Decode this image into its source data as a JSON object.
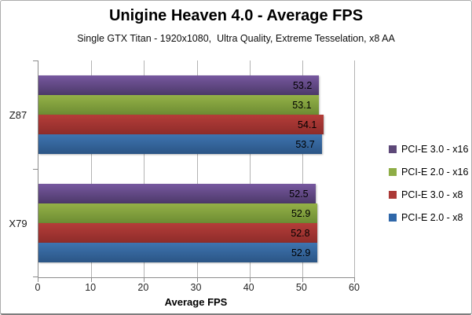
{
  "header": {
    "title": "Unigine Heaven 4.0 - Average FPS",
    "subtitle": "Single GTX Titan - 1920x1080,  Ultra Quality, Extreme Tesselation, x8 AA"
  },
  "chart_data": {
    "type": "bar",
    "orientation": "horizontal",
    "title": "Unigine Heaven 4.0 - Average FPS",
    "subtitle": "Single GTX Titan - 1920x1080,  Ultra Quality, Extreme Tesselation, x8 AA",
    "categories": [
      "Z87",
      "X79"
    ],
    "series": [
      {
        "name": "PCI-E 3.0 - x16",
        "color": "#5D4878",
        "gradient": [
          "#77589F",
          "#4C3969"
        ],
        "values": [
          53.2,
          52.5
        ]
      },
      {
        "name": "PCI-E 2.0 - x16",
        "color": "#8EAD46",
        "gradient": [
          "#94B147",
          "#6D8C33"
        ],
        "values": [
          53.1,
          52.9
        ]
      },
      {
        "name": "PCI-E 3.0 - x8",
        "color": "#AB3936",
        "gradient": [
          "#B53D39",
          "#8E2C2A"
        ],
        "values": [
          54.1,
          52.8
        ]
      },
      {
        "name": "PCI-E 2.0 - x8",
        "color": "#2F67A9",
        "gradient": [
          "#3E74B0",
          "#2B5585"
        ],
        "values": [
          53.7,
          52.9
        ]
      }
    ],
    "xlabel": "Average FPS",
    "xlim": [
      0,
      60
    ],
    "xticks": [
      0,
      10,
      20,
      30,
      40,
      50,
      60
    ],
    "grid": true,
    "legend_position": "right",
    "value_labels": "inside-end",
    "colors_meta": {
      "axis_line": "#8C8C8C",
      "gridline": "#B3B3B3",
      "label_text": "#000000"
    }
  }
}
